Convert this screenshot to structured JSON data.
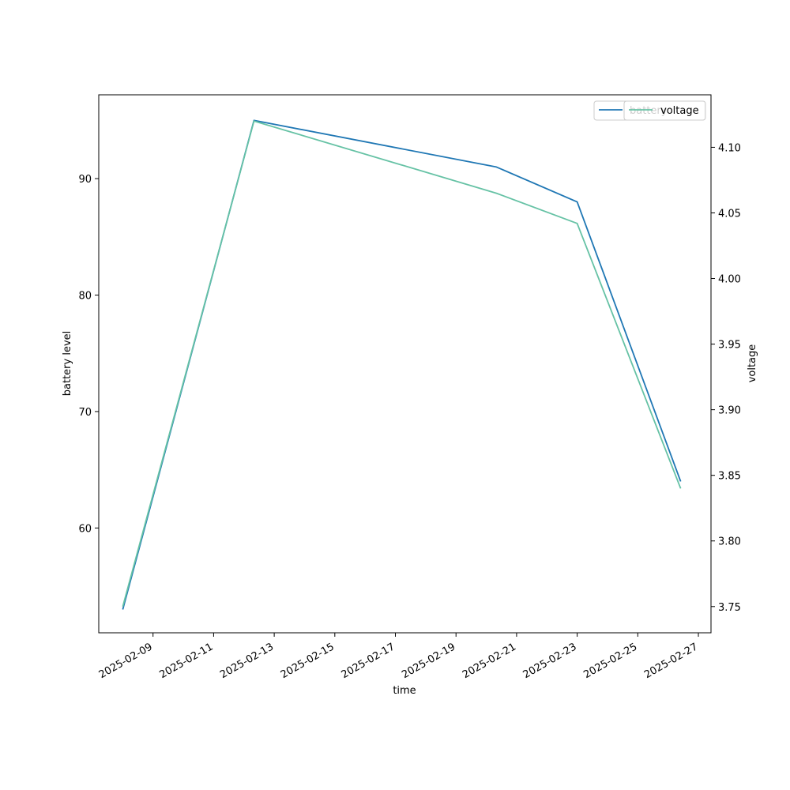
{
  "chart_data": {
    "type": "line",
    "xlabel": "time",
    "ylabel": "battery level",
    "y2label": "voltage",
    "x_ticks": [
      "2025-02-09",
      "2025-02-11",
      "2025-02-13",
      "2025-02-15",
      "2025-02-17",
      "2025-02-19",
      "2025-02-21",
      "2025-02-23",
      "2025-02-25",
      "2025-02-27"
    ],
    "xlim": [
      "2025-02-07T05:00",
      "2025-02-27T10:00"
    ],
    "ylim": [
      51,
      97.2
    ],
    "y_ticks": [
      60,
      70,
      80,
      90
    ],
    "y2lim": [
      3.73,
      4.14
    ],
    "y2_ticks": [
      3.75,
      3.8,
      3.85,
      3.9,
      3.95,
      4.0,
      4.05,
      4.1
    ],
    "y2_tick_labels": [
      "3.75",
      "3.80",
      "3.85",
      "3.90",
      "3.95",
      "4.00",
      "4.05",
      "4.10"
    ],
    "grid": false,
    "series": [
      {
        "name": "battery",
        "axis": "left",
        "color": "#1f77b4",
        "x": [
          "2025-02-08T00:00",
          "2025-02-12T08:00",
          "2025-02-20T08:00",
          "2025-02-23T00:00",
          "2025-02-26T10:00"
        ],
        "values": [
          53,
          95,
          91,
          88,
          64
        ]
      },
      {
        "name": "voltage",
        "axis": "right",
        "color": "#66c2a5",
        "x": [
          "2025-02-08T00:00",
          "2025-02-12T08:00",
          "2025-02-20T08:00",
          "2025-02-23T00:00",
          "2025-02-26T10:00"
        ],
        "values": [
          3.75,
          4.12,
          4.065,
          4.042,
          3.84
        ]
      }
    ],
    "legend": {
      "left": {
        "placement": "top-right",
        "entries": [
          "battery"
        ]
      },
      "right": {
        "placement": "top-right",
        "entries": [
          "voltage"
        ]
      }
    }
  }
}
